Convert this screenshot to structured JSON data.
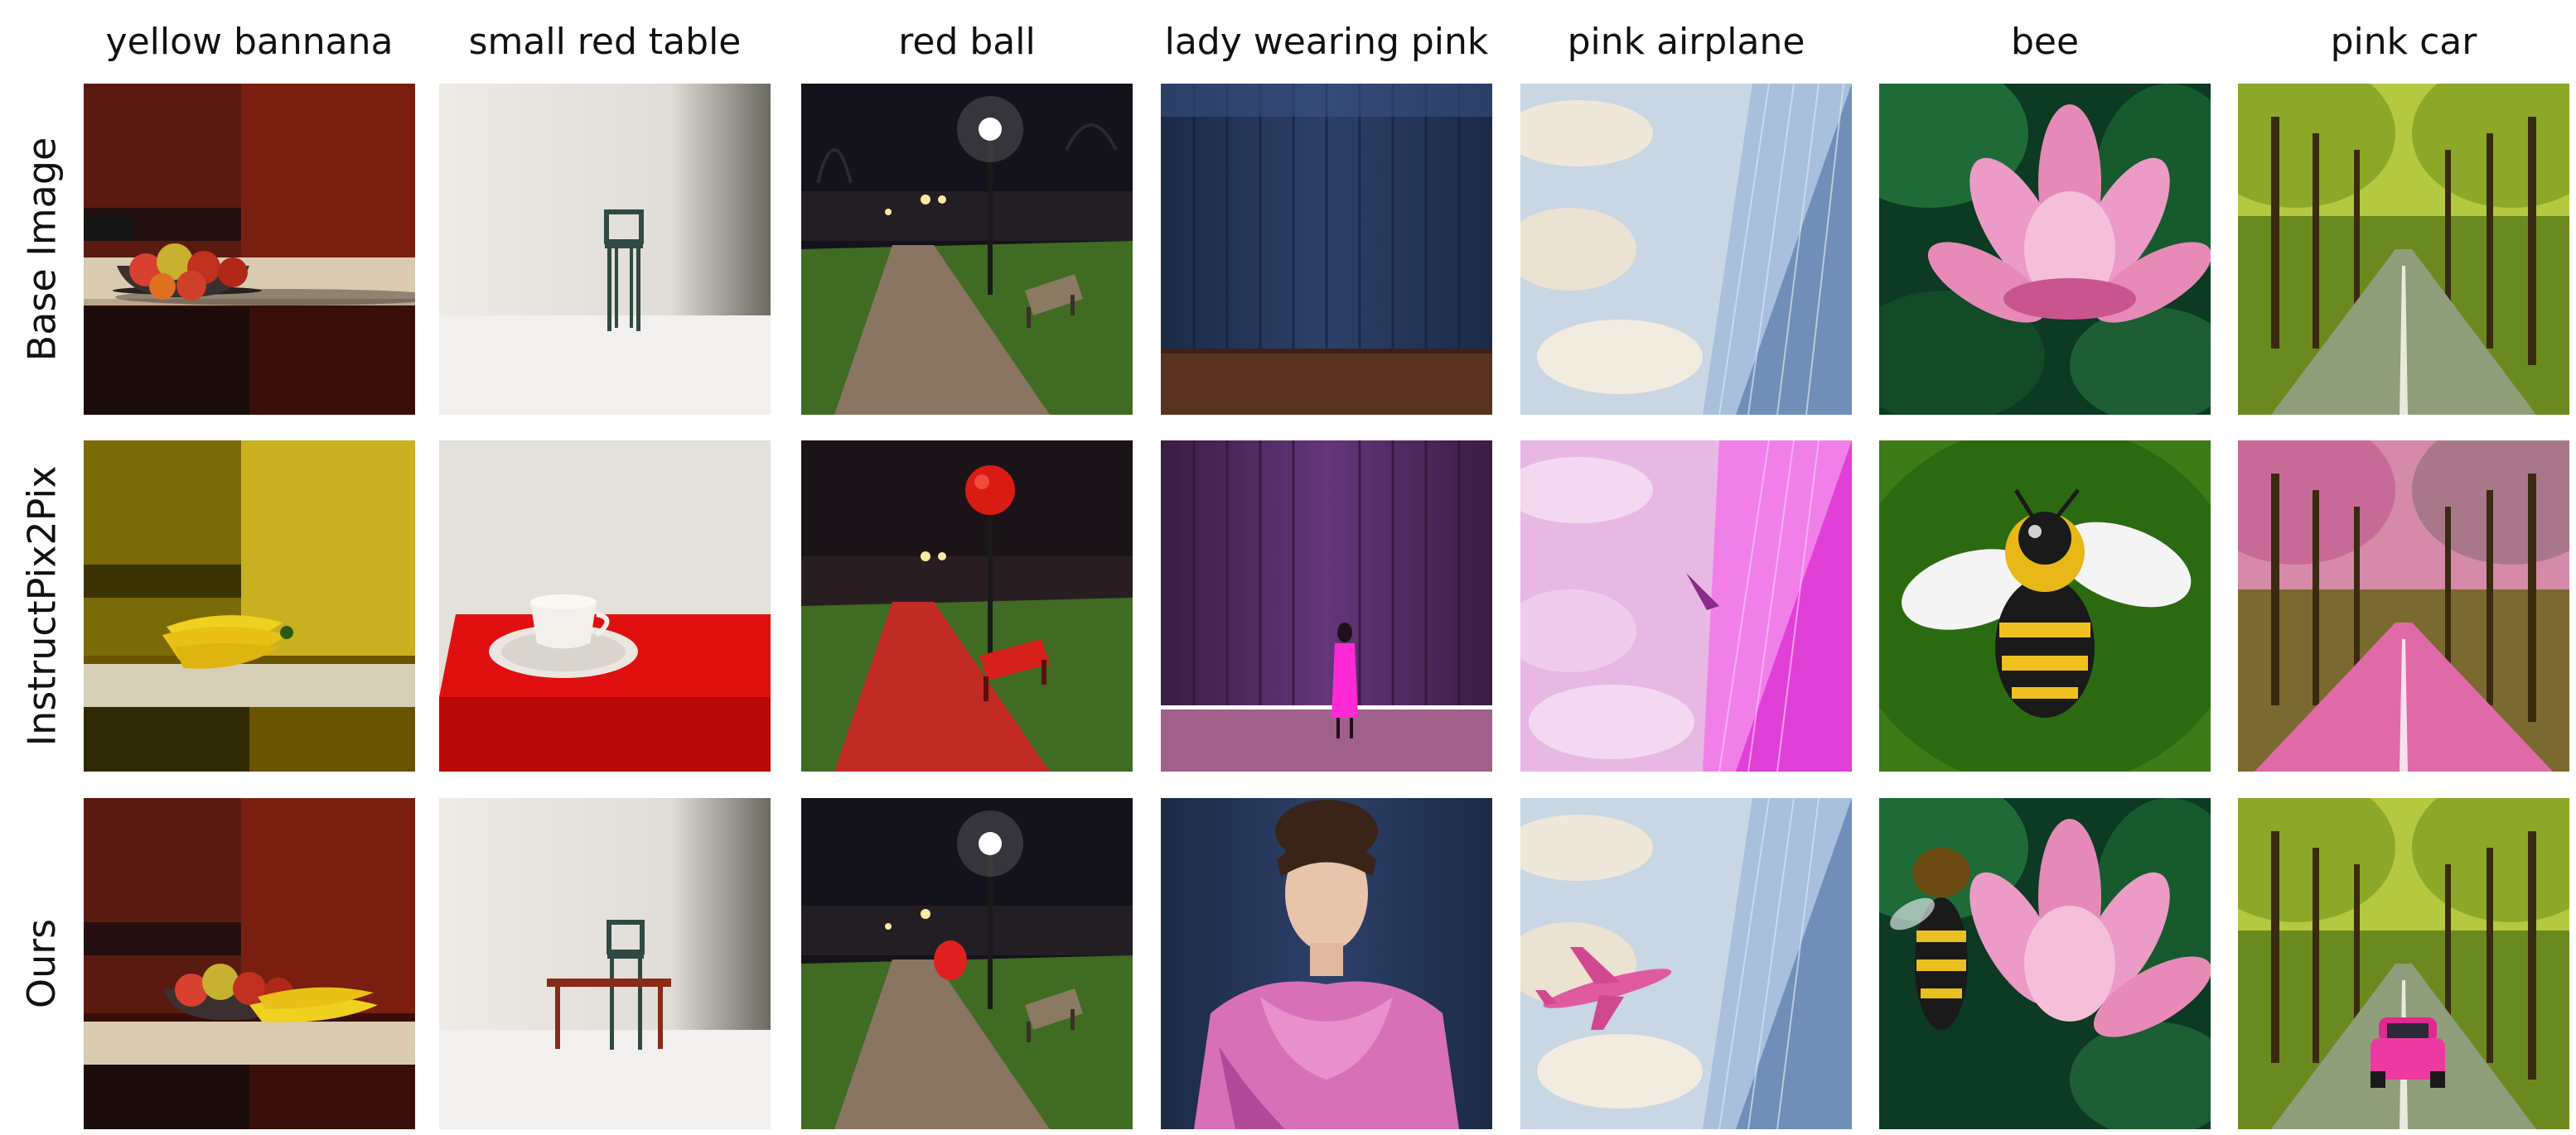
{
  "columns": [
    "yellow bannana",
    "small red table",
    "red ball",
    "lady wearing pink",
    "pink airplane",
    "bee",
    "pink car"
  ],
  "rows": [
    "Base Image",
    "InstructPix2Pix",
    "Ours"
  ],
  "images": [
    [
      "fruit-bowl-on-counter",
      "chair-in-white-room",
      "park-path-at-night",
      "empty-stage-blue-curtain",
      "sky-with-skyscraper",
      "pink-lotus",
      "tree-lined-road"
    ],
    [
      "bananas-on-counter-yellow",
      "teacup-on-red-table",
      "park-with-red-ball-and-red-bench",
      "woman-in-pink-on-purple-stage",
      "pink-sky-with-plane",
      "bee-on-green",
      "pink-trees-and-pink-road"
    ],
    [
      "fruit-bowl-with-bananas",
      "chair-with-small-red-table",
      "park-path-with-red-ball",
      "woman-in-pink-satin-dress",
      "sky-with-pink-airplane",
      "bee-beside-lotus",
      "road-with-pink-car"
    ]
  ]
}
